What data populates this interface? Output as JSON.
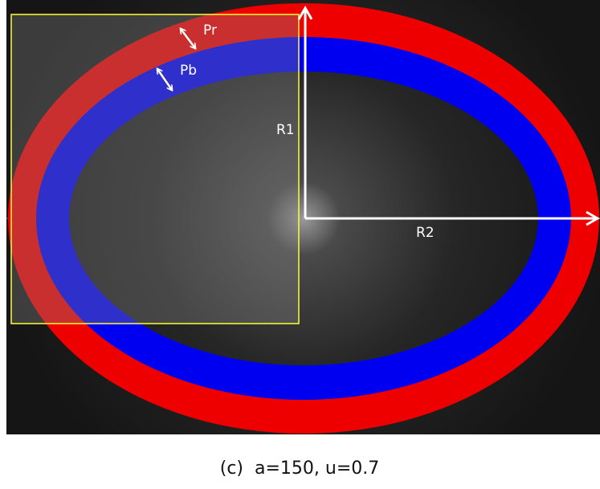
{
  "labels": {
    "pr": "Pr",
    "pb": "Pb",
    "r1": "R1",
    "r2": "R2"
  },
  "caption": "(c)  a=150, u=0.7"
}
